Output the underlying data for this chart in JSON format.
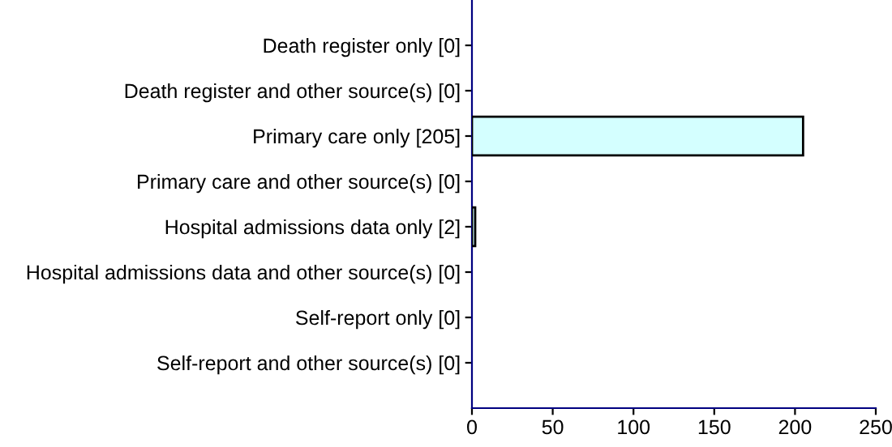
{
  "chart_data": {
    "type": "bar",
    "orientation": "horizontal",
    "categories": [
      "Death register only [0]",
      "Death register and other source(s) [0]",
      "Primary care only [205]",
      "Primary care and other source(s) [0]",
      "Hospital admissions data only [2]",
      "Hospital admissions data and other source(s) [0]",
      "Self-report only [0]",
      "Self-report and other source(s) [0]"
    ],
    "values": [
      0,
      0,
      205,
      0,
      2,
      0,
      0,
      0
    ],
    "color": "#d4ffff",
    "xlim": [
      0,
      250
    ],
    "xticks": [
      0,
      50,
      100,
      150,
      200,
      250
    ],
    "grid": false,
    "legend": false
  }
}
